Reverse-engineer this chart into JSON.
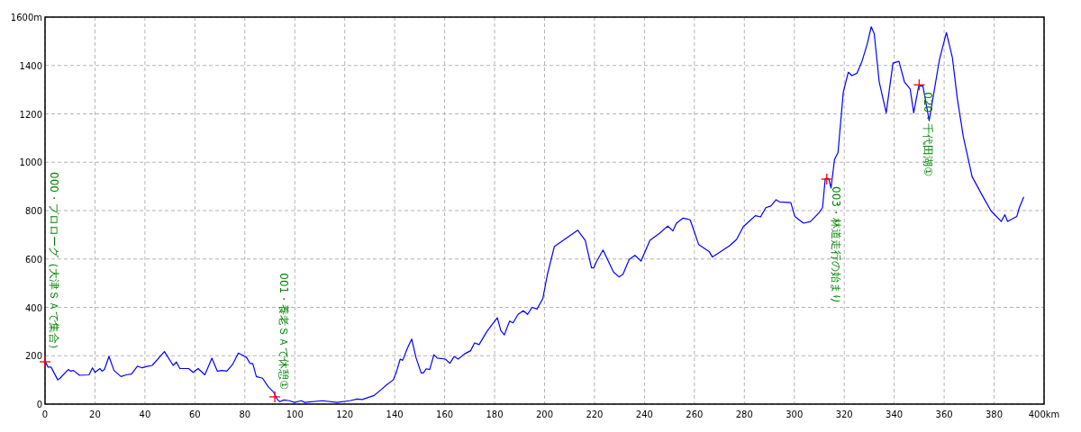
{
  "chart_data": {
    "type": "line",
    "xlim": [
      0,
      400
    ],
    "xticks": [
      0,
      20,
      40,
      60,
      80,
      100,
      120,
      140,
      160,
      180,
      200,
      220,
      240,
      260,
      280,
      300,
      320,
      340,
      360,
      380,
      {
        "value": 400,
        "label": "400km"
      }
    ],
    "ylim": [
      0,
      1600
    ],
    "yticks": [
      0,
      200,
      400,
      600,
      800,
      1000,
      1200,
      1400,
      {
        "value": 1600,
        "label": "1600m"
      }
    ],
    "grid": true,
    "marker": "none",
    "line_style": "solid",
    "series": [
      {
        "color": "#0000ff",
        "x": [
          0,
          1.2,
          2.4,
          5.1,
          6,
          9.3,
          10.3,
          11.4,
          13.8,
          17.6,
          19,
          20,
          22,
          22.8,
          23.8,
          25.6,
          27.6,
          30.4,
          32.5,
          34.6,
          37,
          38.8,
          40.8,
          42.9,
          47.8,
          51.3,
          52.6,
          54,
          57.5,
          59.3,
          61.3,
          64,
          66.8,
          69,
          70.7,
          72.8,
          75.1,
          77.4,
          79,
          80.7,
          82,
          83.2,
          84.6,
          87.1,
          89.4,
          91.5,
          92.9,
          94,
          95.7,
          97.8,
          99.9,
          102.6,
          104,
          111,
          117,
          122,
          124.9,
          127,
          131.8,
          134.6,
          136.7,
          139.4,
          140.8,
          142.2,
          143.2,
          145,
          146.8,
          148.5,
          150.6,
          151.5,
          152.6,
          154,
          155.7,
          157,
          160.3,
          162.1,
          163.8,
          165.4,
          167.9,
          170.4,
          172,
          173.8,
          176.9,
          179,
          181.1,
          182.5,
          183.9,
          186,
          187.4,
          189.4,
          191.5,
          193.2,
          195,
          197,
          199.3,
          201.1,
          203.9,
          213.3,
          216.3,
          218.8,
          219.7,
          220.7,
          223.4,
          227.6,
          229.8,
          231.4,
          233.9,
          236.2,
          238.6,
          242.2,
          245.9,
          249.3,
          251.4,
          252.8,
          255.5,
          258.3,
          261.7,
          265.9,
          267.2,
          270,
          274.1,
          276.9,
          279.6,
          282.6,
          284.4,
          286.5,
          288.6,
          290.6,
          292.7,
          294.1,
          298.6,
          300.2,
          303.7,
          306.5,
          309.9,
          311.3,
          312.4,
          313.8,
          314.7,
          316.1,
          317.5,
          319.6,
          321.6,
          323,
          325.1,
          327.1,
          329.2,
          330.8,
          332,
          334,
          336.8,
          339.5,
          341.9,
          344.1,
          346.4,
          347.8,
          349.8,
          351.5,
          354,
          358.1,
          360.9,
          363.3,
          365.3,
          367.7,
          371.2,
          375.3,
          378.8,
          382.9,
          384.3,
          385.4,
          389.1,
          390.1,
          391.8
        ],
        "values": [
          178,
          153,
          153,
          100,
          107,
          143,
          136,
          139,
          119,
          121,
          150,
          131,
          147,
          136,
          143,
          197,
          139,
          114,
          121,
          124,
          157,
          150,
          156,
          160,
          217,
          160,
          174,
          147,
          147,
          131,
          147,
          121,
          190,
          136,
          139,
          136,
          164,
          211,
          203,
          193,
          169,
          167,
          114,
          107,
          71,
          50,
          21,
          10,
          17,
          14,
          7,
          14,
          7,
          14,
          7,
          14,
          21,
          19,
          36,
          60,
          79,
          100,
          136,
          186,
          181,
          229,
          269,
          193,
          129,
          129,
          146,
          143,
          204,
          190,
          186,
          169,
          197,
          186,
          207,
          221,
          253,
          246,
          300,
          329,
          357,
          304,
          286,
          343,
          336,
          371,
          386,
          371,
          400,
          393,
          436,
          534,
          651,
          719,
          677,
          563,
          563,
          587,
          637,
          546,
          526,
          537,
          598,
          615,
          591,
          677,
          705,
          736,
          716,
          748,
          769,
          762,
          660,
          631,
          608,
          627,
          655,
          681,
          734,
          762,
          779,
          774,
          812,
          819,
          845,
          836,
          833,
          776,
          748,
          755,
          791,
          812,
          933,
          933,
          893,
          1011,
          1040,
          1289,
          1372,
          1358,
          1368,
          1417,
          1489,
          1560,
          1531,
          1332,
          1204,
          1410,
          1417,
          1332,
          1303,
          1204,
          1315,
          1315,
          1172,
          1424,
          1536,
          1432,
          1261,
          1104,
          940,
          862,
          798,
          755,
          783,
          755,
          776,
          812,
          855
        ]
      }
    ],
    "annotations": [
      {
        "text": "000・プロローグ（大津ＳＡで集合）",
        "x": 0,
        "y": 175
      },
      {
        "text": "001・養老ＳＡで休憩①",
        "x": 92,
        "y": 30
      },
      {
        "text": "003・林道走行の始まり",
        "x": 313,
        "y": 930
      },
      {
        "text": "020・千代田湖①",
        "x": 350,
        "y": 1320
      }
    ]
  }
}
